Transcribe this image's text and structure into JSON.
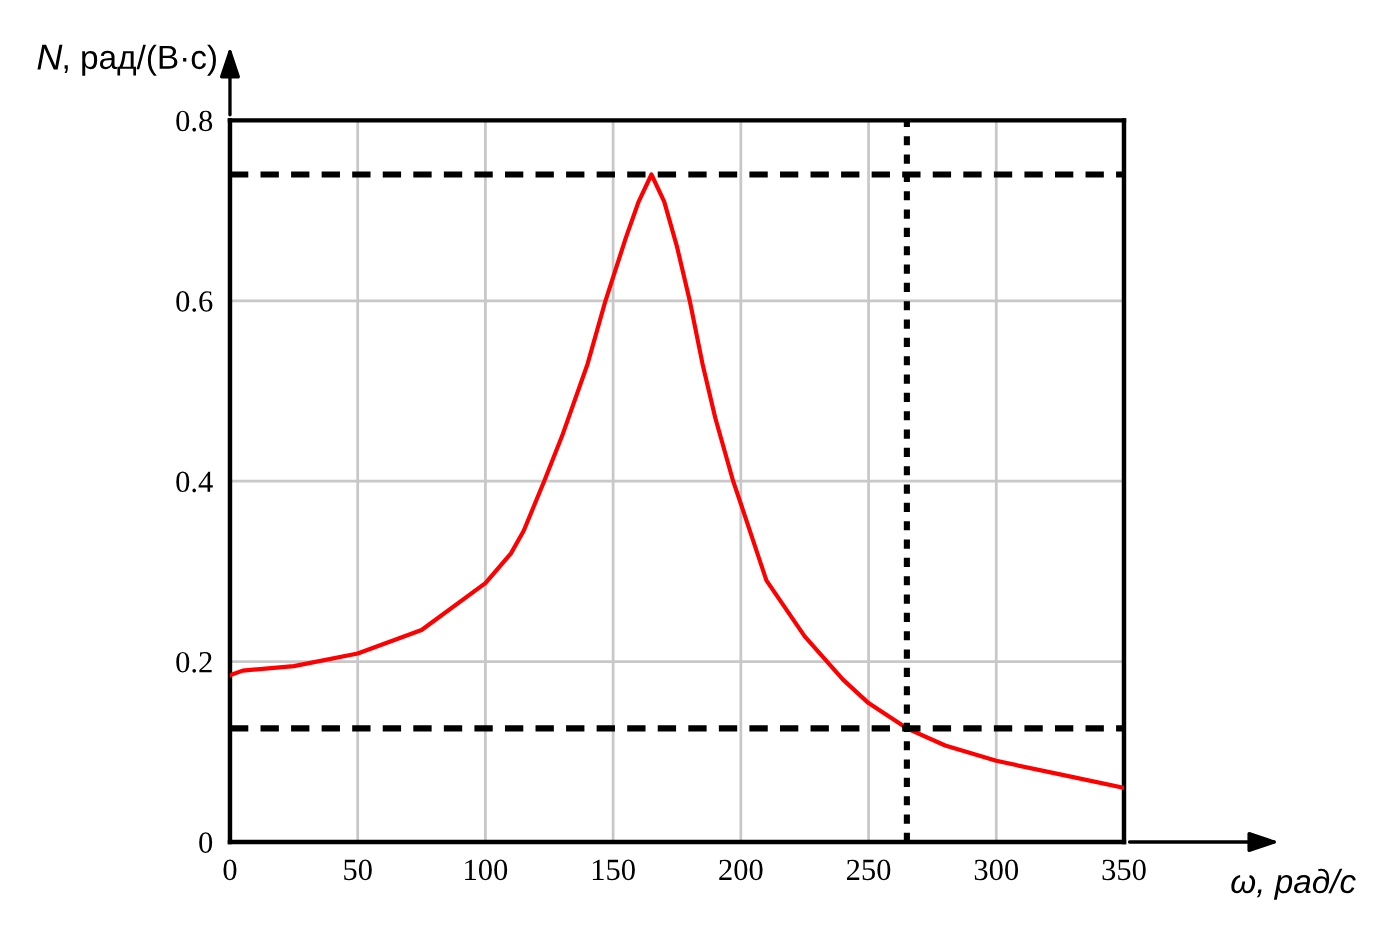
{
  "chart_data": {
    "type": "line",
    "xlabel": "ω, рад/с",
    "ylabel": "N, рад/(В·с)",
    "x": [
      0,
      5,
      25,
      50,
      75,
      100,
      110,
      115,
      123,
      130,
      140,
      147,
      155,
      160,
      165,
      170,
      175,
      180,
      185,
      190,
      197,
      200,
      210,
      225,
      240,
      250,
      265,
      280,
      300,
      325,
      350
    ],
    "series": [
      {
        "color": "#ff0000",
        "values": [
          0.185,
          0.19,
          0.195,
          0.209,
          0.235,
          0.287,
          0.32,
          0.345,
          0.4,
          0.45,
          0.53,
          0.6,
          0.67,
          0.71,
          0.74,
          0.71,
          0.66,
          0.6,
          0.53,
          0.47,
          0.4,
          0.375,
          0.29,
          0.228,
          0.18,
          0.154,
          0.126,
          0.107,
          0.09,
          0.075,
          0.06
        ]
      }
    ],
    "xlim": [
      0,
      350
    ],
    "xticks": [
      0,
      50,
      100,
      150,
      200,
      250,
      300,
      350
    ],
    "ylim": [
      0,
      0.8
    ],
    "yticks": [
      0,
      0.2,
      0.4,
      0.6,
      0.8
    ],
    "grid": true,
    "line_style": "solid",
    "marker": "none",
    "ref_lines": [
      {
        "axis": "y",
        "value": 0.74,
        "color": "#000000",
        "line_style": "dashed"
      },
      {
        "axis": "y",
        "value": 0.126,
        "color": "#000000",
        "line_style": "dashed"
      },
      {
        "axis": "x",
        "value": 265,
        "color": "#000000",
        "line_style": "dotted"
      }
    ]
  }
}
